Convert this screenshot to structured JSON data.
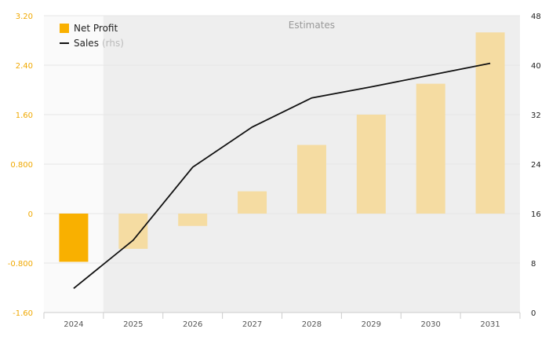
{
  "chart_data": {
    "type": "bar",
    "categories": [
      "2024",
      "2025",
      "2026",
      "2027",
      "2028",
      "2029",
      "2030",
      "2031"
    ],
    "estimates_label": "Estimates",
    "estimates_from_index": 1,
    "series": [
      {
        "name": "Net Profit",
        "type": "bar",
        "axis": "left",
        "color": "#f9b000",
        "estimate_color": "#f5dca2",
        "values": [
          -0.78,
          -0.57,
          -0.2,
          0.36,
          1.11,
          1.6,
          2.1,
          2.93
        ]
      },
      {
        "name": "Sales",
        "name_note": "(rhs)",
        "type": "line",
        "axis": "right",
        "color": "#111111",
        "values": [
          3.9,
          11.7,
          23.5,
          30.0,
          34.7,
          36.5,
          38.4,
          40.3
        ]
      }
    ],
    "y_left": {
      "ticks": [
        "3.20",
        "2.40",
        "1.60",
        "0.800",
        "0",
        "-0.800",
        "-1.60"
      ],
      "range": [
        -1.6,
        3.2
      ]
    },
    "y_right": {
      "ticks": [
        "48",
        "40",
        "32",
        "24",
        "16",
        "8",
        "0"
      ],
      "range": [
        0,
        48
      ]
    },
    "grid": true,
    "legend": "top-left"
  }
}
